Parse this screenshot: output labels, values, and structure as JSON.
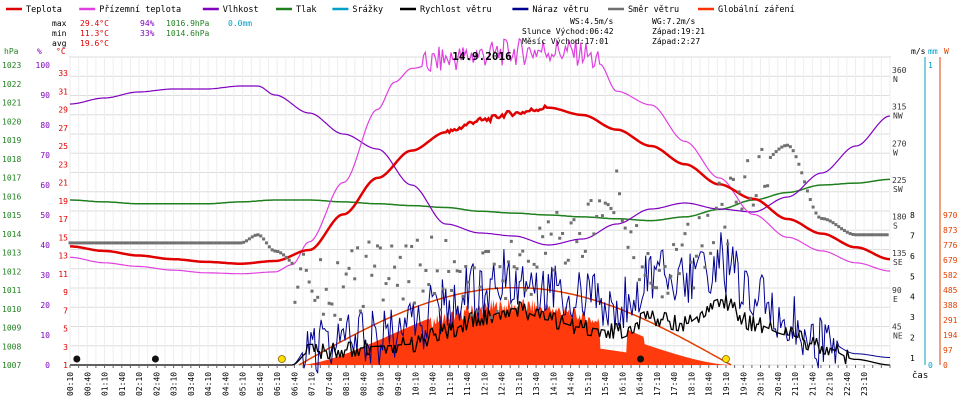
{
  "chart_data": {
    "type": "line",
    "title": "14.9.2016",
    "x_label": "čas",
    "legend": [
      {
        "name": "Teplota",
        "color": "#e00000"
      },
      {
        "name": "Přízemní teplota",
        "color": "#e040e0"
      },
      {
        "name": "Vlhkost",
        "color": "#8000c0"
      },
      {
        "name": "Tlak",
        "color": "#208020"
      },
      {
        "name": "Srážky",
        "color": "#00a0c8"
      },
      {
        "name": "Rychlost větru",
        "color": "#000000"
      },
      {
        "name": "Náraz větru",
        "color": "#000090"
      },
      {
        "name": "Směr větru",
        "color": "#707070"
      },
      {
        "name": "Globální záření",
        "color": "#ff3000"
      }
    ],
    "stats": {
      "max": {
        "label": "max",
        "temp": "29.4°C",
        "hum": "94%",
        "press": "1016.9hPa",
        "rain": "0.0mm"
      },
      "min": {
        "label": "min",
        "temp": "11.3°C",
        "hum": "33%",
        "press": "1014.6hPa"
      },
      "avg": {
        "label": "avg",
        "temp": "19.6°C"
      }
    },
    "info": {
      "ws": "WS:4.5m/s",
      "wg": "WG:7.2m/s",
      "sun": "Slunce Východ:06:42",
      "sun_set": "Západ:19:21",
      "moon": "Měsíc Východ:17:01",
      "moon_set": "Západ:2:27"
    },
    "left_axes": {
      "hpa_title": "hPa",
      "pct_title": "%",
      "degc_title": "°C",
      "hpa_ticks": [
        "1023",
        "1022",
        "1021",
        "1020",
        "1019",
        "1018",
        "1017",
        "1016",
        "1015",
        "1014",
        "1013",
        "1012",
        "1011",
        "1010",
        "1009",
        "1008",
        "1007"
      ],
      "pct_ticks": [
        "100",
        "90",
        "80",
        "70",
        "60",
        "50",
        "40",
        "30",
        "20",
        "10",
        "0"
      ],
      "degc_ticks": [
        "33",
        "31",
        "29",
        "27",
        "25",
        "23",
        "21",
        "19",
        "17",
        "15",
        "13",
        "11",
        "9",
        "7",
        "5",
        "3",
        "1"
      ]
    },
    "right_axes": {
      "dir_title": "m/s",
      "mm_title": "mm",
      "w_title": "W",
      "dir_ticks": [
        {
          "v": "360",
          "l": "N"
        },
        {
          "v": "315",
          "l": "NW"
        },
        {
          "v": "270",
          "l": "W"
        },
        {
          "v": "225",
          "l": "SW"
        },
        {
          "v": "180",
          "l": "S"
        },
        {
          "v": "135",
          "l": "SE"
        },
        {
          "v": "90",
          "l": "E"
        },
        {
          "v": "45",
          "l": "NE"
        }
      ],
      "ms_ticks": [
        "8",
        "7",
        "6",
        "5",
        "4",
        "3",
        "2",
        "1"
      ],
      "mm_ticks": [
        "1",
        "0"
      ],
      "w_ticks": [
        "970",
        "873",
        "776",
        "679",
        "582",
        "485",
        "388",
        "291",
        "194",
        "97",
        "0"
      ]
    },
    "x_ticks": [
      "00:10",
      "00:25",
      "00:40",
      "00:55",
      "01:10",
      "01:25",
      "01:40",
      "01:55",
      "02:10",
      "02:25",
      "02:40",
      "02:55",
      "03:10",
      "03:25",
      "03:40",
      "03:55",
      "04:10",
      "04:25",
      "04:40",
      "04:55",
      "05:10",
      "05:25",
      "05:40",
      "05:55",
      "06:10",
      "06:25",
      "06:40",
      "06:55",
      "07:10",
      "07:25",
      "07:40",
      "07:55",
      "08:10",
      "08:25",
      "08:40",
      "08:55",
      "09:10",
      "09:25",
      "09:40",
      "09:55",
      "10:10",
      "10:25",
      "10:40",
      "10:55",
      "11:10",
      "11:25",
      "11:40",
      "11:55",
      "12:10",
      "12:25",
      "12:40",
      "12:55",
      "13:10",
      "13:25",
      "13:40",
      "13:55",
      "14:10",
      "14:25",
      "14:40",
      "14:55",
      "15:10",
      "15:25",
      "15:40",
      "15:55",
      "16:10",
      "16:25",
      "16:40",
      "16:55",
      "17:10",
      "17:25",
      "17:40",
      "17:55",
      "18:10",
      "18:25",
      "18:40",
      "18:55",
      "19:10",
      "19:25",
      "19:40",
      "19:55",
      "20:10",
      "20:25",
      "20:40",
      "20:55",
      "21:10",
      "21:25",
      "21:40",
      "21:55",
      "22:10",
      "22:25",
      "22:40",
      "22:55",
      "23:10",
      "23:25",
      "23:40",
      "23:55"
    ],
    "x_tick_labels_shown": [
      "00:10",
      "00:40",
      "01:10",
      "01:40",
      "02:10",
      "02:40",
      "03:10",
      "03:40",
      "04:10",
      "04:40",
      "05:10",
      "05:40",
      "06:10",
      "06:40",
      "07:10",
      "07:40",
      "08:10",
      "08:40",
      "09:10",
      "09:40",
      "10:10",
      "10:40",
      "11:10",
      "11:40",
      "12:10",
      "12:40",
      "13:10",
      "13:40",
      "14:10",
      "14:40",
      "15:10",
      "15:40",
      "16:10",
      "16:40",
      "17:10",
      "17:40",
      "18:10",
      "18:40",
      "19:10",
      "19:40",
      "20:10",
      "20:40",
      "21:10",
      "21:40",
      "22:10",
      "22:40",
      "23:10",
      "23:50"
    ],
    "series": {
      "temperature_c": {
        "hours": [
          0,
          1,
          2,
          3,
          4,
          5,
          6,
          7,
          8,
          9,
          10,
          11,
          12,
          13,
          14,
          15,
          16,
          17,
          18,
          19,
          20,
          21,
          22,
          23,
          24
        ],
        "values": [
          14,
          13.5,
          13,
          12.6,
          12.3,
          12.1,
          12.4,
          13.6,
          17.5,
          21.5,
          24.5,
          26.5,
          27.8,
          28.6,
          29.2,
          28.4,
          26.8,
          25,
          23,
          20.8,
          19.2,
          17,
          15.4,
          13.9,
          12.6
        ]
      },
      "ground_temperature_c": {
        "hours": [
          0,
          1,
          2,
          3,
          4,
          5,
          6,
          6.5,
          7,
          8,
          9,
          9.5,
          10,
          11,
          12,
          13,
          14,
          15,
          15.5,
          16,
          17,
          18,
          19,
          20,
          21,
          22,
          23,
          24
        ],
        "values": [
          12.8,
          12.2,
          11.8,
          11.4,
          11.1,
          11,
          11.2,
          12,
          14.5,
          21,
          29,
          32,
          33.5,
          34.5,
          35,
          35.3,
          35.5,
          35.2,
          34,
          31,
          29.5,
          25.5,
          21.5,
          17.5,
          15,
          13.5,
          12.2,
          11.3
        ]
      },
      "humidity_pct": {
        "hours": [
          0,
          1,
          2,
          3,
          4,
          5,
          5.5,
          6,
          7,
          8,
          9,
          10,
          11,
          12,
          13,
          14,
          15,
          16,
          17,
          18,
          19,
          20,
          21,
          22,
          23,
          24
        ],
        "values": [
          87,
          89,
          91,
          92,
          92,
          93,
          93,
          90,
          84,
          77,
          72,
          60,
          47,
          44,
          43,
          40,
          42,
          47,
          52,
          54,
          52,
          51,
          56,
          64,
          73,
          83
        ]
      },
      "pressure_hpa": {
        "hours": [
          0,
          1,
          2,
          3,
          4,
          5,
          6,
          7,
          8,
          9,
          10,
          11,
          12,
          13,
          14,
          15,
          16,
          17,
          18,
          19,
          20,
          21,
          22,
          23,
          24
        ],
        "values": [
          1015.8,
          1015.7,
          1015.6,
          1015.6,
          1015.6,
          1015.7,
          1015.8,
          1015.8,
          1015.7,
          1015.6,
          1015.5,
          1015.4,
          1015.2,
          1015.1,
          1015.0,
          1014.9,
          1014.8,
          1014.7,
          1014.9,
          1015.3,
          1015.8,
          1016.2,
          1016.6,
          1016.7,
          1016.9
        ]
      },
      "global_radiation_wm2": {
        "sunrise_h": 6.7,
        "sunset_h": 19.35,
        "theoretical_max": 500,
        "measured_peak": 420
      },
      "wind_speed_ms": {
        "hours": [
          0,
          6.5,
          7,
          8,
          9,
          10,
          11,
          12,
          13,
          14,
          15,
          16,
          17,
          18,
          19,
          20,
          21,
          22,
          23,
          24
        ],
        "values": [
          0,
          0,
          0.7,
          0.8,
          1.0,
          1.1,
          1.8,
          2.5,
          3.0,
          2.4,
          2.0,
          1.8,
          2.5,
          2.2,
          3.5,
          2.2,
          1.6,
          1.0,
          0.3,
          0
        ]
      },
      "wind_gust_ms": {
        "hours": [
          0,
          6.5,
          7,
          8,
          9,
          10,
          11,
          12,
          13,
          14,
          15,
          16,
          17,
          18,
          19,
          20,
          21,
          22,
          23,
          24
        ],
        "values": [
          0,
          0,
          1.0,
          1.3,
          1.6,
          2.0,
          3.2,
          4.0,
          4.8,
          4.4,
          3.6,
          2.8,
          5.0,
          4.5,
          5.5,
          3.5,
          2.2,
          1.4,
          0.6,
          0.4
        ]
      },
      "wind_direction_deg": {
        "hours": [
          0,
          2,
          4,
          5,
          5.5,
          6,
          7,
          8,
          9,
          10,
          11,
          12,
          13,
          14,
          15,
          16,
          17,
          18,
          19,
          20,
          21,
          22,
          23,
          24
        ],
        "values": [
          150,
          150,
          150,
          150,
          160,
          140,
          110,
          100,
          110,
          120,
          110,
          100,
          110,
          150,
          160,
          200,
          95,
          130,
          180,
          240,
          270,
          180,
          160,
          160
        ]
      }
    },
    "markers": {
      "dark_dots_h": [
        0.2,
        2.5,
        16.7
      ],
      "yellow_dots_h": [
        6.2,
        19.2
      ]
    }
  }
}
